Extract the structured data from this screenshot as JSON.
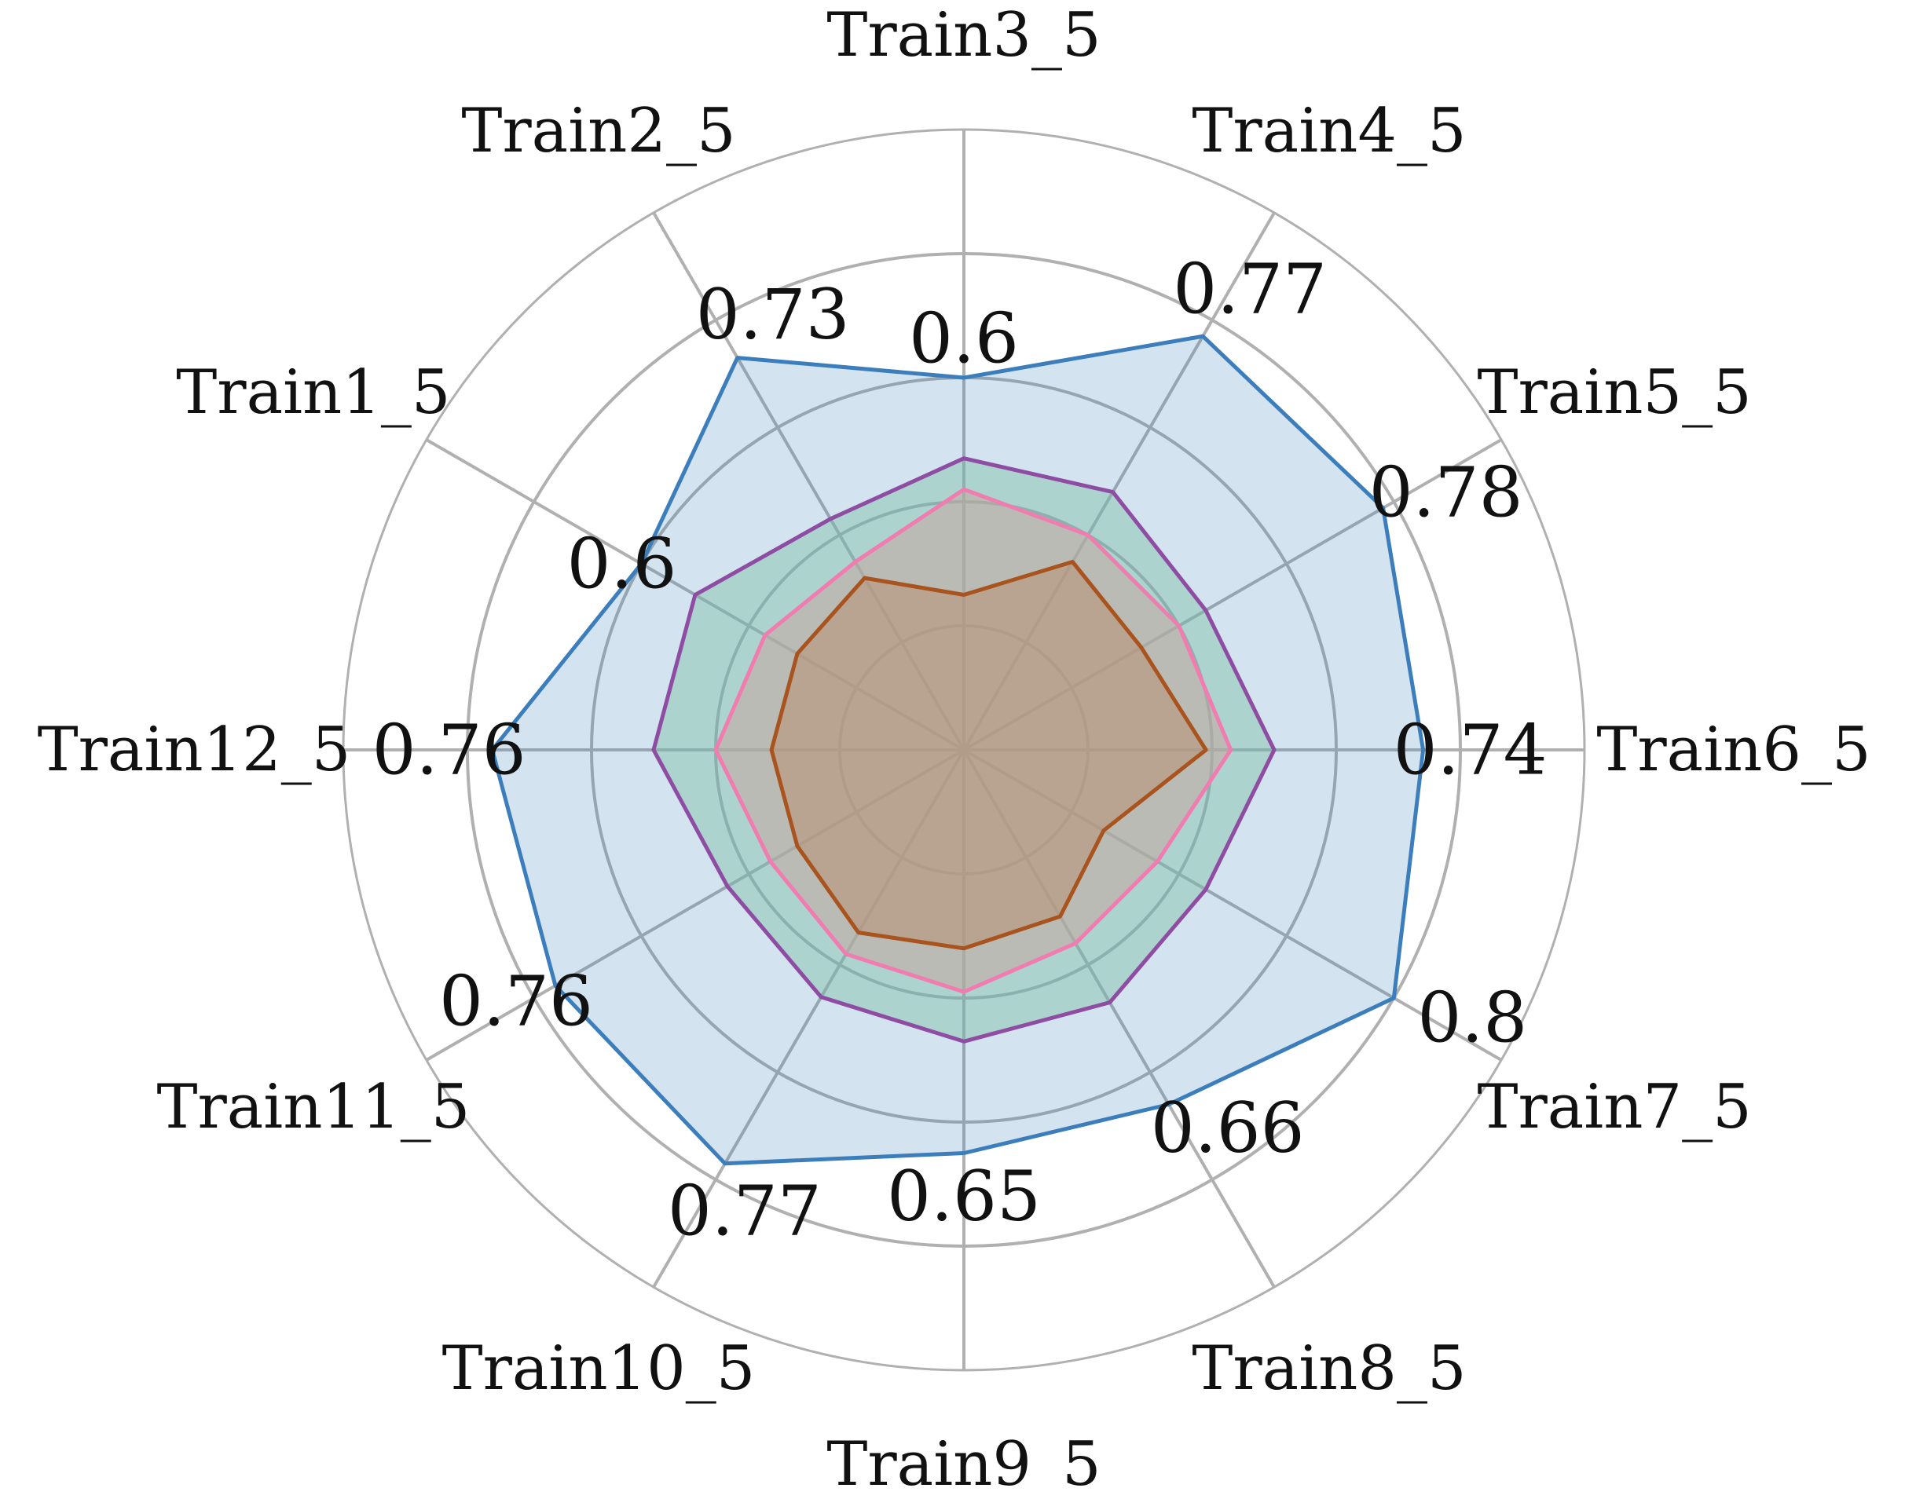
{
  "chart_data": {
    "type": "radar",
    "title": "",
    "categories": [
      "Train1_5",
      "Train2_5",
      "Train3_5",
      "Train4_5",
      "Train5_5",
      "Train6_5",
      "Train7_5",
      "Train8_5",
      "Train9_5",
      "Train10_5",
      "Train11_5",
      "Train12_5"
    ],
    "rlim": [
      0,
      1
    ],
    "grid": true,
    "grid_rings": [
      0.2,
      0.4,
      0.6,
      0.8,
      1.0
    ],
    "colors": {
      "series_1": "#3b7ebb",
      "series_2": "#8e4ca3",
      "series_3": "#f17cb0",
      "series_4": "#a9541e",
      "series_2_fill": "#7fbfa6",
      "grid": "#b0b0b0"
    },
    "series": [
      {
        "values": [
          0.6,
          0.73,
          0.6,
          0.77,
          0.78,
          0.74,
          0.8,
          0.66,
          0.65,
          0.77,
          0.76,
          0.76
        ],
        "value_labels": [
          "0.6",
          "0.73",
          "0.6",
          "0.77",
          "0.78",
          "0.74",
          "0.8",
          "0.66",
          "0.65",
          "0.77",
          "0.76",
          "0.76"
        ]
      },
      {
        "values": [
          0.5,
          0.43,
          0.47,
          0.48,
          0.45,
          0.5,
          0.45,
          0.47,
          0.47,
          0.46,
          0.44,
          0.5
        ]
      },
      {
        "values": [
          0.37,
          0.35,
          0.42,
          0.4,
          0.4,
          0.43,
          0.36,
          0.36,
          0.39,
          0.38,
          0.36,
          0.4
        ]
      },
      {
        "values": [
          0.31,
          0.32,
          0.25,
          0.35,
          0.33,
          0.39,
          0.26,
          0.31,
          0.32,
          0.34,
          0.31,
          0.31
        ]
      }
    ]
  }
}
